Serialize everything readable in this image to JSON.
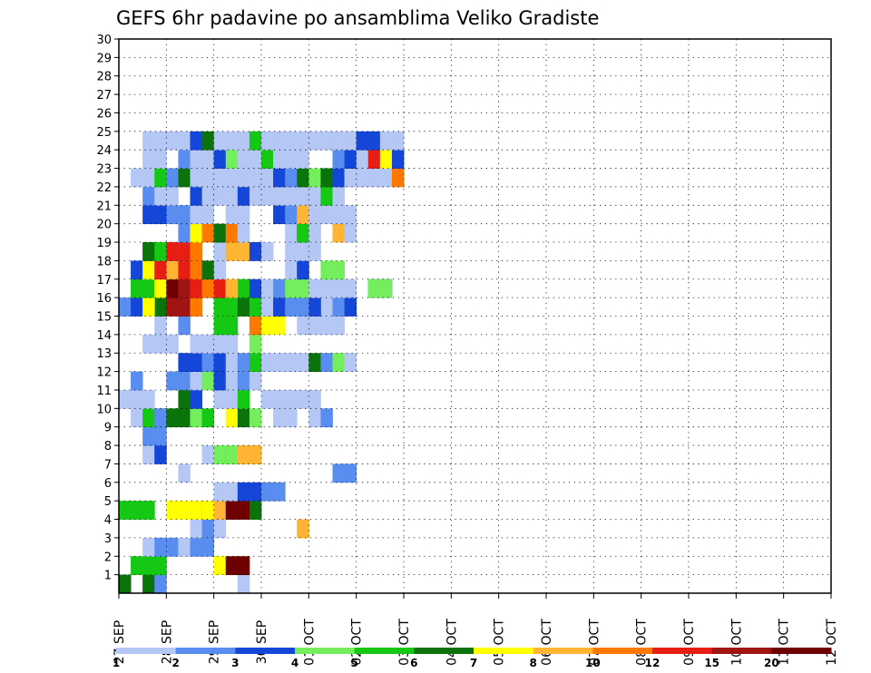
{
  "chart_data": {
    "type": "heatmap",
    "title": "GEFS 6hr padavine po ansamblima Veliko Gradiste",
    "xlabel": "",
    "ylabel": "",
    "x_tick_labels": [
      "27 SEP",
      "28 SEP",
      "29 SEP",
      "30 SEP",
      "01 OCT",
      "02 OCT",
      "03 OCT",
      "04 OCT",
      "05 OCT",
      "06 OCT",
      "07 OCT",
      "08 OCT",
      "09 OCT",
      "10 OCT",
      "11 OCT",
      "12 OCT"
    ],
    "y_tick_labels": [
      "1",
      "2",
      "3",
      "4",
      "5",
      "6",
      "7",
      "8",
      "9",
      "10",
      "11",
      "12",
      "13",
      "14",
      "15",
      "16",
      "17",
      "18",
      "19",
      "20",
      "21",
      "22",
      "23",
      "24",
      "25",
      "26",
      "27",
      "28",
      "29",
      "30"
    ],
    "ensemble_range": [
      0,
      30
    ],
    "grid": true,
    "legend": {
      "position": "bottom",
      "thresholds": [
        "1",
        "2",
        "3",
        "4",
        "5",
        "6",
        "7",
        "8",
        "10",
        "12",
        "15",
        "20"
      ],
      "colors": [
        "#b4c7f5",
        "#5a8df0",
        "#1446d8",
        "#74ee5c",
        "#14c814",
        "#0a730a",
        "#ffff00",
        "#ffb433",
        "#ff7800",
        "#e61e14",
        "#a01414",
        "#6e0000"
      ]
    },
    "cells": [
      [
        0,
        1,
        14
      ],
      [
        0,
        1,
        14.5
      ],
      [
        0,
        5,
        14
      ],
      [
        0,
        5,
        14.5
      ],
      [
        0,
        0,
        16.5
      ],
      [
        0,
        1,
        14.75
      ],
      [
        1,
        4,
        14.25
      ],
      [
        1,
        4,
        14.5
      ],
      [
        1,
        4,
        14.75
      ],
      [
        1,
        6,
        16
      ],
      [
        1,
        6,
        16.25
      ],
      [
        1,
        6,
        16.5
      ],
      [
        1,
        11,
        16.25
      ],
      [
        1,
        11,
        16.5
      ],
      [
        2,
        0,
        14.5
      ],
      [
        2,
        0,
        14.75
      ],
      [
        2,
        0,
        15
      ],
      [
        2,
        1,
        14.75
      ],
      [
        2,
        1,
        15
      ],
      [
        2,
        0,
        15.25
      ],
      [
        2,
        0,
        15.5
      ],
      [
        2,
        1,
        15.5
      ],
      [
        2,
        1,
        15.75
      ],
      [
        3,
        0,
        15.5
      ],
      [
        3,
        1,
        15.75
      ],
      [
        3,
        0,
        16
      ],
      [
        3,
        6,
        17.75
      ],
      [
        3,
        7,
        17.75
      ],
      [
        4,
        4,
        14
      ],
      [
        4,
        4,
        14.25
      ],
      [
        4,
        4,
        14.5
      ],
      [
        4,
        6,
        15
      ],
      [
        4,
        6,
        15.25
      ],
      [
        4,
        6,
        15.5
      ],
      [
        4,
        5,
        15.75
      ],
      [
        4,
        6,
        15.75
      ],
      [
        4,
        7,
        16
      ],
      [
        4,
        11,
        16.25
      ],
      [
        4,
        11,
        16.5
      ],
      [
        4,
        5,
        16.75
      ],
      [
        5,
        0,
        16
      ],
      [
        5,
        0,
        16.25
      ],
      [
        5,
        2,
        16.5
      ],
      [
        5,
        2,
        16.75
      ],
      [
        5,
        1,
        17
      ],
      [
        5,
        1,
        17.25
      ],
      [
        6,
        0,
        18.5
      ],
      [
        6,
        1,
        18.5
      ],
      [
        6,
        1,
        18.75
      ],
      [
        6,
        0,
        15.25
      ],
      [
        7,
        0,
        14.5
      ],
      [
        7,
        2,
        14.75
      ],
      [
        7,
        0,
        15.75
      ],
      [
        7,
        3,
        16
      ],
      [
        7,
        4,
        16.25
      ],
      [
        7,
        6,
        16.75
      ],
      [
        7,
        4,
        16.5
      ],
      [
        7,
        3,
        16.25
      ],
      [
        7,
        7,
        16.5
      ],
      [
        7,
        7,
        16.75
      ],
      [
        8,
        1,
        14.5
      ],
      [
        8,
        1,
        14.75
      ],
      [
        9,
        0,
        14.25
      ],
      [
        9,
        0,
        14.5
      ],
      [
        9,
        4,
        14.5
      ],
      [
        9,
        4,
        14.75
      ],
      [
        9,
        1,
        14.75
      ],
      [
        9,
        5,
        15
      ],
      [
        9,
        5,
        15.25
      ],
      [
        9,
        3,
        15.5
      ],
      [
        9,
        4,
        15.75
      ],
      [
        9,
        6,
        16.25
      ],
      [
        9,
        5,
        16.5
      ],
      [
        9,
        3,
        16.75
      ],
      [
        9,
        0,
        17.25
      ],
      [
        9,
        0,
        17.5
      ],
      [
        9,
        0,
        18
      ],
      [
        9,
        1,
        18.25
      ],
      [
        10,
        0,
        14
      ],
      [
        10,
        0,
        14.25
      ],
      [
        10,
        0,
        14.5
      ],
      [
        10,
        5,
        15.25
      ],
      [
        10,
        2,
        15.5
      ],
      [
        10,
        0,
        16
      ],
      [
        10,
        0,
        16.25
      ],
      [
        10,
        0,
        16.5
      ],
      [
        10,
        0,
        17
      ],
      [
        10,
        0,
        17.25
      ],
      [
        10,
        0,
        17.5
      ],
      [
        10,
        0,
        17.75
      ],
      [
        10,
        0,
        18
      ],
      [
        10,
        4,
        16.5
      ],
      [
        11,
        1,
        14.25
      ],
      [
        11,
        1,
        15
      ],
      [
        11,
        1,
        15.25
      ],
      [
        11,
        0,
        15.5
      ],
      [
        11,
        3,
        15.75
      ],
      [
        11,
        2,
        16
      ],
      [
        11,
        0,
        16.25
      ],
      [
        11,
        1,
        16.5
      ],
      [
        11,
        0,
        16.75
      ],
      [
        12,
        2,
        15.25
      ],
      [
        12,
        2,
        15.5
      ],
      [
        12,
        1,
        15.75
      ],
      [
        12,
        2,
        16
      ],
      [
        12,
        0,
        16.25
      ],
      [
        12,
        1,
        16.5
      ],
      [
        12,
        4,
        16.75
      ],
      [
        12,
        0,
        17
      ],
      [
        12,
        0,
        17.25
      ],
      [
        12,
        0,
        17.5
      ],
      [
        12,
        0,
        17.75
      ],
      [
        12,
        5,
        18
      ],
      [
        12,
        1,
        18.25
      ],
      [
        12,
        3,
        18.5
      ],
      [
        12,
        0,
        18.75
      ],
      [
        13,
        0,
        14.5
      ],
      [
        13,
        0,
        14.75
      ],
      [
        13,
        0,
        15
      ],
      [
        13,
        0,
        15.5
      ],
      [
        13,
        0,
        15.75
      ],
      [
        13,
        0,
        16
      ],
      [
        13,
        0,
        16.25
      ],
      [
        13,
        3,
        16.75
      ],
      [
        14,
        0,
        14.75
      ],
      [
        14,
        1,
        15.25
      ],
      [
        14,
        4,
        16
      ],
      [
        14,
        4,
        16.25
      ],
      [
        14,
        8,
        16.75
      ],
      [
        14,
        6,
        17
      ],
      [
        14,
        6,
        17.25
      ],
      [
        14,
        0,
        17.75
      ],
      [
        14,
        0,
        18
      ],
      [
        14,
        0,
        18.25
      ],
      [
        14,
        0,
        18.5
      ],
      [
        15,
        1,
        14
      ],
      [
        15,
        2,
        14.25
      ],
      [
        15,
        5,
        14.75
      ],
      [
        15,
        6,
        14.5
      ],
      [
        15,
        10,
        15
      ],
      [
        15,
        10,
        15.25
      ],
      [
        15,
        8,
        15.5
      ],
      [
        15,
        4,
        16
      ],
      [
        15,
        4,
        16.25
      ],
      [
        15,
        5,
        16.5
      ],
      [
        15,
        4,
        16.75
      ],
      [
        15,
        0,
        17
      ],
      [
        15,
        2,
        17.25
      ],
      [
        15,
        1,
        17.5
      ],
      [
        15,
        0,
        18.25
      ],
      [
        15,
        1,
        18.5
      ],
      [
        15,
        2,
        18.75
      ],
      [
        15,
        2,
        18
      ],
      [
        15,
        1,
        17.75
      ],
      [
        16,
        4,
        14.25
      ],
      [
        16,
        4,
        14.5
      ],
      [
        16,
        6,
        14.75
      ],
      [
        16,
        11,
        15
      ],
      [
        16,
        10,
        15.25
      ],
      [
        16,
        10,
        15.5
      ],
      [
        16,
        11,
        15.75
      ],
      [
        16,
        9,
        16
      ],
      [
        16,
        6,
        16.25
      ],
      [
        16,
        4,
        16.5
      ],
      [
        16,
        2,
        16.75
      ],
      [
        16,
        0,
        17
      ],
      [
        16,
        1,
        17.25
      ],
      [
        16,
        3,
        17.5
      ],
      [
        16,
        3,
        17.75
      ],
      [
        16,
        0,
        18
      ],
      [
        16,
        0,
        18.25
      ],
      [
        16,
        0,
        18.5
      ],
      [
        16,
        0,
        18.75
      ],
      [
        16,
        2,
        19.25
      ],
      [
        16,
        2,
        19.5
      ],
      [
        16,
        3,
        19.25
      ],
      [
        16,
        3,
        19.5
      ],
      [
        16,
        4,
        15.5
      ],
      [
        16,
        5,
        15.5
      ],
      [
        16,
        10,
        15.75
      ],
      [
        16,
        9,
        15.5
      ],
      [
        16,
        8,
        15.75
      ],
      [
        16,
        7,
        16.25
      ],
      [
        17,
        0,
        14.5
      ],
      [
        17,
        0,
        14.75
      ],
      [
        17,
        2,
        14.25
      ],
      [
        17,
        6,
        14.5
      ],
      [
        17,
        9,
        14.75
      ],
      [
        17,
        7,
        15
      ],
      [
        17,
        9,
        15.25
      ],
      [
        17,
        8,
        15.5
      ],
      [
        17,
        5,
        15.75
      ],
      [
        17,
        0,
        16
      ],
      [
        17,
        0,
        17.5
      ],
      [
        17,
        2,
        17.75
      ],
      [
        17,
        3,
        18.25
      ],
      [
        17,
        3,
        18.5
      ],
      [
        18,
        0,
        14.5
      ],
      [
        18,
        0,
        14.75
      ],
      [
        18,
        0,
        15
      ],
      [
        18,
        1,
        15.25
      ],
      [
        18,
        5,
        14.5
      ],
      [
        18,
        4,
        14.75
      ],
      [
        18,
        9,
        15
      ],
      [
        18,
        9,
        15.25
      ],
      [
        18,
        8,
        15.5
      ],
      [
        18,
        0,
        16
      ],
      [
        18,
        7,
        16.25
      ],
      [
        18,
        7,
        16.5
      ],
      [
        18,
        2,
        16.75
      ],
      [
        18,
        0,
        17
      ],
      [
        18,
        0,
        17.5
      ],
      [
        18,
        0,
        17.75
      ],
      [
        18,
        0,
        18
      ],
      [
        19,
        1,
        15.25
      ],
      [
        19,
        6,
        15.5
      ],
      [
        19,
        8,
        15.75
      ],
      [
        19,
        5,
        16
      ],
      [
        19,
        8,
        16.25
      ],
      [
        19,
        0,
        16.5
      ],
      [
        19,
        0,
        17.5
      ],
      [
        19,
        2,
        17.75
      ],
      [
        19,
        4,
        17.75
      ],
      [
        19,
        0,
        18
      ],
      [
        19,
        7,
        18.5
      ],
      [
        19,
        7,
        18.75
      ],
      [
        19,
        0,
        18.75
      ],
      [
        20,
        2,
        14.75
      ],
      [
        20,
        1,
        15
      ],
      [
        20,
        1,
        15.25
      ],
      [
        20,
        2,
        14.5
      ],
      [
        20,
        0,
        15.5
      ],
      [
        20,
        0,
        15.75
      ],
      [
        20,
        0,
        16.25
      ],
      [
        20,
        0,
        16.5
      ],
      [
        20,
        2,
        17.25
      ],
      [
        20,
        1,
        17.5
      ],
      [
        20,
        7,
        17.75
      ],
      [
        20,
        0,
        18
      ],
      [
        20,
        0,
        18.25
      ],
      [
        20,
        0,
        18.5
      ],
      [
        20,
        0,
        18.75
      ],
      [
        21,
        1,
        14.5
      ],
      [
        21,
        0,
        14.75
      ],
      [
        21,
        0,
        15
      ],
      [
        21,
        2,
        15.5
      ],
      [
        21,
        0,
        15.75
      ],
      [
        21,
        0,
        16
      ],
      [
        21,
        0,
        16.25
      ],
      [
        21,
        2,
        16.5
      ],
      [
        21,
        0,
        16.75
      ],
      [
        21,
        0,
        17
      ],
      [
        21,
        0,
        17.25
      ],
      [
        21,
        0,
        17.5
      ],
      [
        21,
        0,
        17.75
      ],
      [
        21,
        0,
        18
      ],
      [
        21,
        4,
        18.25
      ],
      [
        21,
        0,
        18.5
      ],
      [
        22,
        0,
        14.25
      ],
      [
        22,
        0,
        14.5
      ],
      [
        22,
        4,
        14.75
      ],
      [
        22,
        1,
        15
      ],
      [
        22,
        5,
        15.25
      ],
      [
        22,
        0,
        15.5
      ],
      [
        22,
        0,
        15.75
      ],
      [
        22,
        0,
        16
      ],
      [
        22,
        0,
        16.25
      ],
      [
        22,
        0,
        16.5
      ],
      [
        22,
        0,
        16.75
      ],
      [
        22,
        0,
        17
      ],
      [
        22,
        2,
        17.25
      ],
      [
        22,
        1,
        17.5
      ],
      [
        22,
        5,
        17.75
      ],
      [
        22,
        3,
        18
      ],
      [
        22,
        5,
        18.25
      ],
      [
        22,
        2,
        18.5
      ],
      [
        22,
        0,
        18.75
      ],
      [
        22,
        0,
        19
      ],
      [
        22,
        0,
        19.25
      ],
      [
        22,
        0,
        19.5
      ],
      [
        22,
        8,
        19.75
      ],
      [
        23,
        0,
        14.5
      ],
      [
        23,
        0,
        14.75
      ],
      [
        23,
        1,
        15.25
      ],
      [
        23,
        0,
        15.5
      ],
      [
        23,
        0,
        15.75
      ],
      [
        23,
        2,
        16
      ],
      [
        23,
        3,
        16.25
      ],
      [
        23,
        0,
        16.5
      ],
      [
        23,
        0,
        16.75
      ],
      [
        23,
        4,
        17
      ],
      [
        23,
        0,
        17.25
      ],
      [
        23,
        0,
        17.5
      ],
      [
        23,
        0,
        17.75
      ],
      [
        23,
        1,
        18.5
      ],
      [
        23,
        2,
        18.75
      ],
      [
        23,
        0,
        19
      ],
      [
        23,
        9,
        19.25
      ],
      [
        23,
        6,
        19.5
      ],
      [
        23,
        2,
        19.75
      ],
      [
        24,
        0,
        14.5
      ],
      [
        24,
        0,
        14.75
      ],
      [
        24,
        0,
        15
      ],
      [
        24,
        0,
        15.25
      ],
      [
        24,
        2,
        15.5
      ],
      [
        24,
        5,
        15.75
      ],
      [
        24,
        0,
        16
      ],
      [
        24,
        0,
        16.25
      ],
      [
        24,
        0,
        16.5
      ],
      [
        24,
        4,
        16.75
      ],
      [
        24,
        0,
        17
      ],
      [
        24,
        0,
        17.25
      ],
      [
        24,
        0,
        17.5
      ],
      [
        24,
        0,
        17.75
      ],
      [
        24,
        0,
        18
      ],
      [
        24,
        0,
        18.25
      ],
      [
        24,
        0,
        18.5
      ],
      [
        24,
        0,
        18.75
      ],
      [
        24,
        2,
        19
      ],
      [
        24,
        2,
        19.25
      ],
      [
        24,
        0,
        19.5
      ],
      [
        24,
        0,
        19.75
      ]
    ]
  }
}
